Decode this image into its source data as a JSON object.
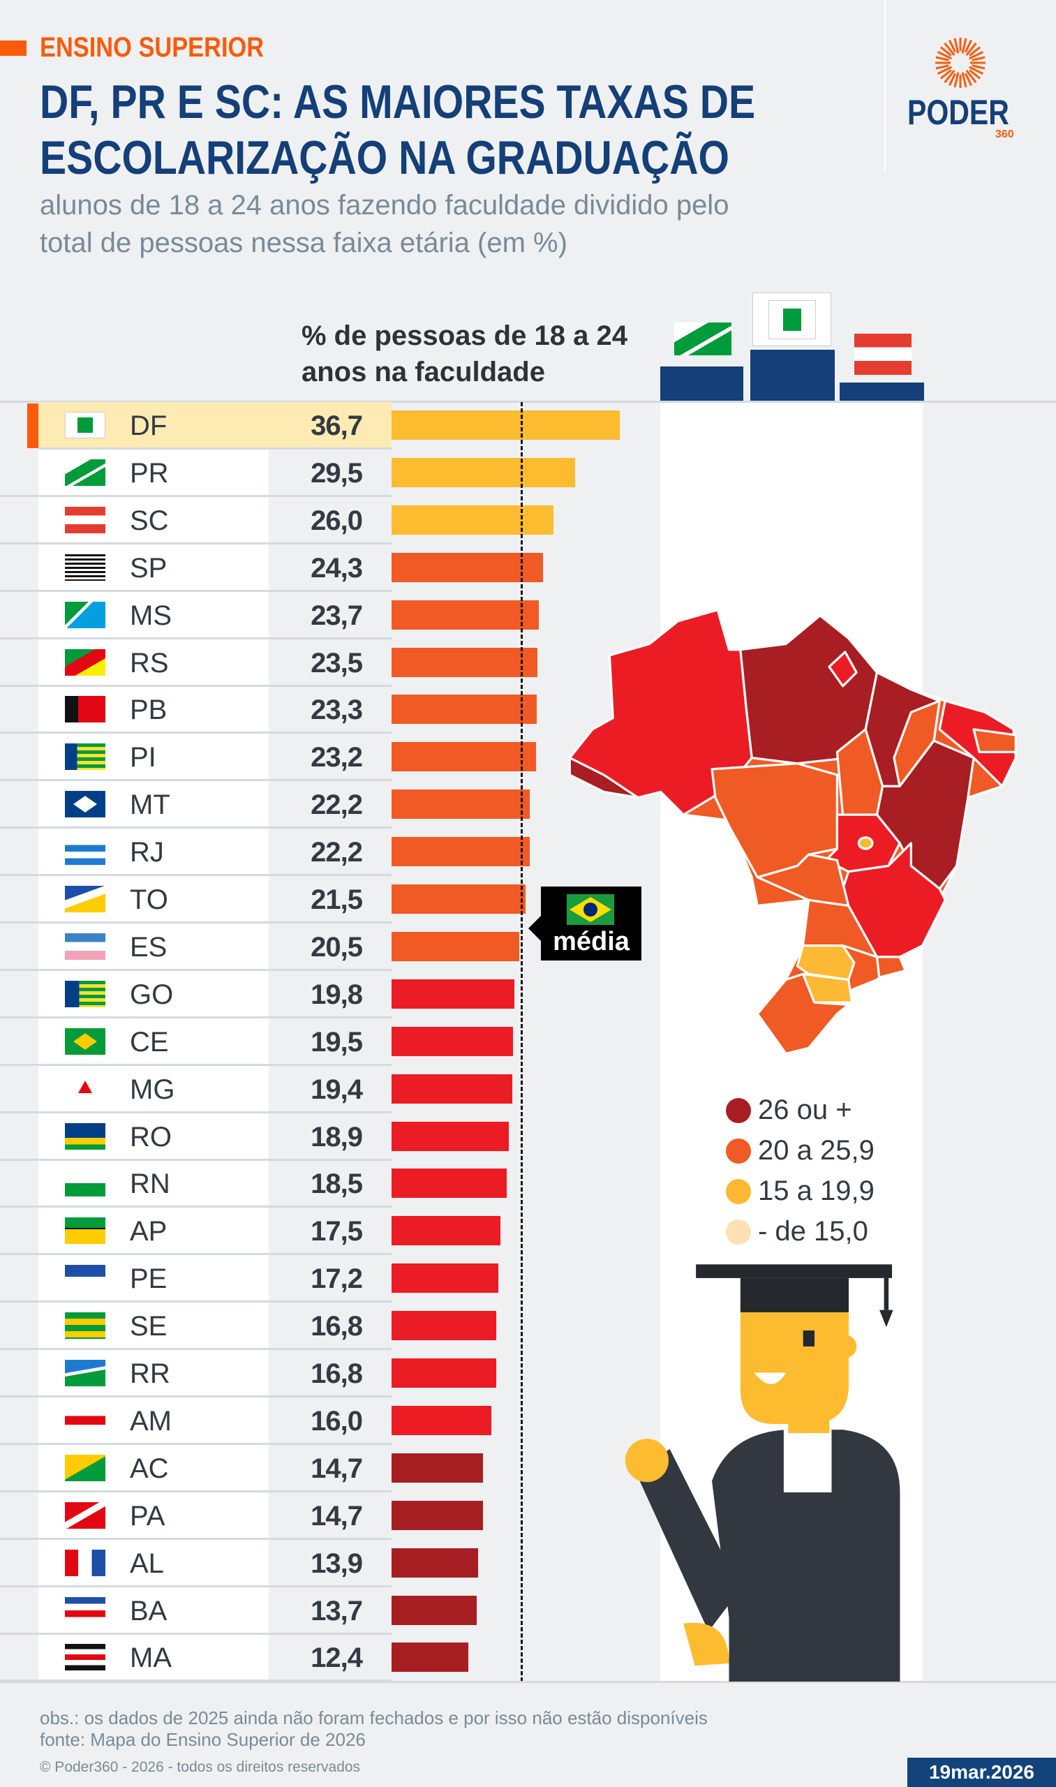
{
  "header": {
    "kicker": "ENSINO SUPERIOR",
    "title_line1": "DF, PR E SC: AS MAIORES TAXAS DE",
    "title_line2": "ESCOLARIZAÇÃO NA GRADUAÇÃO",
    "subtitle_line1": "alunos de 18 a 24 anos fazendo faculdade dividido pelo",
    "subtitle_line2": "total de pessoas nessa faixa etária (em %)"
  },
  "logo": {
    "name": "PODER",
    "suffix": "360",
    "accent": "#f95b0a",
    "brand": "#143f78"
  },
  "chart_data": {
    "type": "bar",
    "orientation": "horizontal",
    "column_header": "% de pessoas de 18 a 24 anos na faculdade",
    "column_header_line1": "% de pessoas de 18 a 24",
    "column_header_line2": "anos na faculdade",
    "reference_line": {
      "label": "média",
      "value": 20.9,
      "style": "dashed"
    },
    "tier_colors": {
      "yellow": "#fdbb30",
      "orange": "#f15a24",
      "red": "#ec1c24",
      "darkred": "#a71e22"
    },
    "highlight": "DF",
    "rows": [
      {
        "state": "DF",
        "value": 36.7,
        "label": "36,7",
        "tier": "yellow"
      },
      {
        "state": "PR",
        "value": 29.5,
        "label": "29,5",
        "tier": "yellow"
      },
      {
        "state": "SC",
        "value": 26.0,
        "label": "26,0",
        "tier": "yellow"
      },
      {
        "state": "SP",
        "value": 24.3,
        "label": "24,3",
        "tier": "orange"
      },
      {
        "state": "MS",
        "value": 23.7,
        "label": "23,7",
        "tier": "orange"
      },
      {
        "state": "RS",
        "value": 23.5,
        "label": "23,5",
        "tier": "orange"
      },
      {
        "state": "PB",
        "value": 23.3,
        "label": "23,3",
        "tier": "orange"
      },
      {
        "state": "PI",
        "value": 23.2,
        "label": "23,2",
        "tier": "orange"
      },
      {
        "state": "MT",
        "value": 22.2,
        "label": "22,2",
        "tier": "orange"
      },
      {
        "state": "RJ",
        "value": 22.2,
        "label": "22,2",
        "tier": "orange"
      },
      {
        "state": "TO",
        "value": 21.5,
        "label": "21,5",
        "tier": "orange"
      },
      {
        "state": "ES",
        "value": 20.5,
        "label": "20,5",
        "tier": "orange"
      },
      {
        "state": "GO",
        "value": 19.8,
        "label": "19,8",
        "tier": "red"
      },
      {
        "state": "CE",
        "value": 19.5,
        "label": "19,5",
        "tier": "red"
      },
      {
        "state": "MG",
        "value": 19.4,
        "label": "19,4",
        "tier": "red"
      },
      {
        "state": "RO",
        "value": 18.9,
        "label": "18,9",
        "tier": "red"
      },
      {
        "state": "RN",
        "value": 18.5,
        "label": "18,5",
        "tier": "red"
      },
      {
        "state": "AP",
        "value": 17.5,
        "label": "17,5",
        "tier": "red"
      },
      {
        "state": "PE",
        "value": 17.2,
        "label": "17,2",
        "tier": "red"
      },
      {
        "state": "SE",
        "value": 16.8,
        "label": "16,8",
        "tier": "red"
      },
      {
        "state": "RR",
        "value": 16.8,
        "label": "16,8",
        "tier": "red"
      },
      {
        "state": "AM",
        "value": 16.0,
        "label": "16,0",
        "tier": "red"
      },
      {
        "state": "AC",
        "value": 14.7,
        "label": "14,7",
        "tier": "darkred"
      },
      {
        "state": "PA",
        "value": 14.7,
        "label": "14,7",
        "tier": "darkred"
      },
      {
        "state": "AL",
        "value": 13.9,
        "label": "13,9",
        "tier": "darkred"
      },
      {
        "state": "BA",
        "value": 13.7,
        "label": "13,7",
        "tier": "darkred"
      },
      {
        "state": "MA",
        "value": 12.4,
        "label": "12,4",
        "tier": "darkred"
      }
    ]
  },
  "map_legend": [
    {
      "label": "26 ou +",
      "color": "#a81e22"
    },
    {
      "label": "20 a 25,9",
      "color": "#f05a24"
    },
    {
      "label": "15 a 19,9",
      "color": "#fdb933"
    },
    {
      "label": "- de 15,0",
      "color": "#fde0b3"
    }
  ],
  "podium": [
    "PR",
    "DF",
    "SC"
  ],
  "footer": {
    "obs": "obs.: os dados de 2025 ainda não foram fechados e por isso não estão disponíveis",
    "source": "fonte: Mapa do Ensino Superior de 2026",
    "copyright": "© Poder360 - 2026 - todos os direitos reservados",
    "date": "19mar.2026"
  }
}
